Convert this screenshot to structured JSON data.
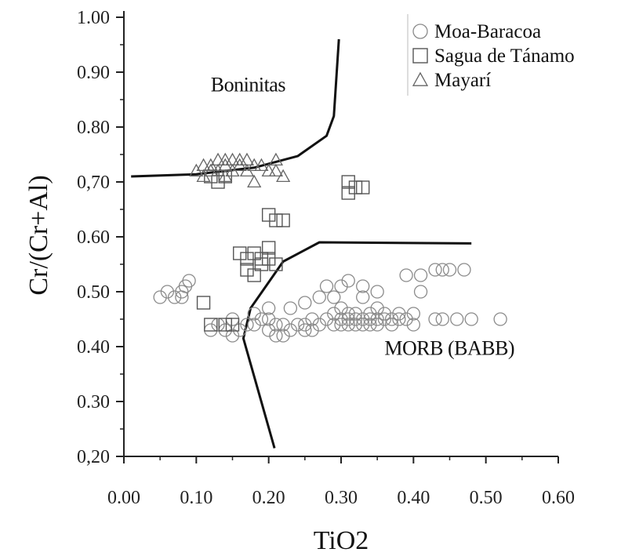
{
  "chart_data": {
    "type": "scatter",
    "xlabel": "TiO2",
    "ylabel": "Cr/(Cr+Al)",
    "xlim": [
      0.0,
      0.6
    ],
    "ylim": [
      0.2,
      1.0
    ],
    "x_ticks": [
      "0.00",
      "0.10",
      "0.20",
      "0.30",
      "0.40",
      "0.50",
      "0.60"
    ],
    "y_ticks": [
      "0,20",
      "0.30",
      "0.40",
      "0.50",
      "0.60",
      "0,70",
      "0.80",
      "0.90",
      "1.00"
    ],
    "legend_position": "top-right",
    "series": [
      {
        "name": "Moa-Baracoa",
        "marker": "circle",
        "points": [
          [
            0.05,
            0.49
          ],
          [
            0.06,
            0.5
          ],
          [
            0.07,
            0.49
          ],
          [
            0.08,
            0.5
          ],
          [
            0.085,
            0.51
          ],
          [
            0.09,
            0.52
          ],
          [
            0.08,
            0.49
          ],
          [
            0.12,
            0.43
          ],
          [
            0.13,
            0.44
          ],
          [
            0.14,
            0.43
          ],
          [
            0.15,
            0.45
          ],
          [
            0.15,
            0.42
          ],
          [
            0.16,
            0.43
          ],
          [
            0.17,
            0.44
          ],
          [
            0.18,
            0.44
          ],
          [
            0.18,
            0.46
          ],
          [
            0.19,
            0.45
          ],
          [
            0.2,
            0.43
          ],
          [
            0.2,
            0.45
          ],
          [
            0.2,
            0.47
          ],
          [
            0.21,
            0.44
          ],
          [
            0.21,
            0.42
          ],
          [
            0.22,
            0.44
          ],
          [
            0.22,
            0.42
          ],
          [
            0.23,
            0.43
          ],
          [
            0.24,
            0.44
          ],
          [
            0.25,
            0.44
          ],
          [
            0.25,
            0.43
          ],
          [
            0.26,
            0.45
          ],
          [
            0.26,
            0.43
          ],
          [
            0.27,
            0.44
          ],
          [
            0.27,
            0.49
          ],
          [
            0.28,
            0.51
          ],
          [
            0.28,
            0.45
          ],
          [
            0.29,
            0.46
          ],
          [
            0.29,
            0.44
          ],
          [
            0.3,
            0.44
          ],
          [
            0.3,
            0.45
          ],
          [
            0.3,
            0.47
          ],
          [
            0.31,
            0.44
          ],
          [
            0.31,
            0.46
          ],
          [
            0.31,
            0.45
          ],
          [
            0.32,
            0.44
          ],
          [
            0.32,
            0.45
          ],
          [
            0.32,
            0.46
          ],
          [
            0.33,
            0.44
          ],
          [
            0.33,
            0.45
          ],
          [
            0.33,
            0.51
          ],
          [
            0.34,
            0.44
          ],
          [
            0.34,
            0.45
          ],
          [
            0.34,
            0.46
          ],
          [
            0.35,
            0.45
          ],
          [
            0.35,
            0.44
          ],
          [
            0.35,
            0.5
          ],
          [
            0.36,
            0.45
          ],
          [
            0.36,
            0.46
          ],
          [
            0.37,
            0.45
          ],
          [
            0.37,
            0.44
          ],
          [
            0.38,
            0.45
          ],
          [
            0.38,
            0.46
          ],
          [
            0.39,
            0.45
          ],
          [
            0.4,
            0.44
          ],
          [
            0.4,
            0.46
          ],
          [
            0.39,
            0.53
          ],
          [
            0.41,
            0.53
          ],
          [
            0.43,
            0.54
          ],
          [
            0.44,
            0.54
          ],
          [
            0.45,
            0.54
          ],
          [
            0.47,
            0.54
          ],
          [
            0.41,
            0.5
          ],
          [
            0.43,
            0.45
          ],
          [
            0.44,
            0.45
          ],
          [
            0.46,
            0.45
          ],
          [
            0.48,
            0.45
          ],
          [
            0.52,
            0.45
          ],
          [
            0.3,
            0.51
          ],
          [
            0.29,
            0.49
          ],
          [
            0.31,
            0.52
          ],
          [
            0.33,
            0.49
          ],
          [
            0.35,
            0.47
          ],
          [
            0.25,
            0.48
          ],
          [
            0.23,
            0.47
          ]
        ]
      },
      {
        "name": "Sagua de Tánamo",
        "marker": "square",
        "points": [
          [
            0.11,
            0.48
          ],
          [
            0.12,
            0.44
          ],
          [
            0.14,
            0.44
          ],
          [
            0.15,
            0.44
          ],
          [
            0.16,
            0.57
          ],
          [
            0.17,
            0.56
          ],
          [
            0.17,
            0.54
          ],
          [
            0.18,
            0.57
          ],
          [
            0.18,
            0.53
          ],
          [
            0.19,
            0.55
          ],
          [
            0.19,
            0.56
          ],
          [
            0.2,
            0.56
          ],
          [
            0.2,
            0.58
          ],
          [
            0.21,
            0.55
          ],
          [
            0.2,
            0.64
          ],
          [
            0.21,
            0.63
          ],
          [
            0.22,
            0.63
          ],
          [
            0.31,
            0.7
          ],
          [
            0.31,
            0.68
          ],
          [
            0.32,
            0.69
          ],
          [
            0.33,
            0.69
          ],
          [
            0.12,
            0.71
          ],
          [
            0.13,
            0.7
          ],
          [
            0.14,
            0.71
          ]
        ]
      },
      {
        "name": "Mayarí",
        "marker": "triangle",
        "points": [
          [
            0.1,
            0.72
          ],
          [
            0.11,
            0.73
          ],
          [
            0.11,
            0.71
          ],
          [
            0.12,
            0.73
          ],
          [
            0.12,
            0.72
          ],
          [
            0.13,
            0.74
          ],
          [
            0.13,
            0.72
          ],
          [
            0.14,
            0.74
          ],
          [
            0.14,
            0.73
          ],
          [
            0.14,
            0.71
          ],
          [
            0.15,
            0.74
          ],
          [
            0.15,
            0.72
          ],
          [
            0.16,
            0.74
          ],
          [
            0.16,
            0.73
          ],
          [
            0.17,
            0.74
          ],
          [
            0.17,
            0.72
          ],
          [
            0.18,
            0.73
          ],
          [
            0.19,
            0.73
          ],
          [
            0.2,
            0.72
          ],
          [
            0.21,
            0.74
          ],
          [
            0.21,
            0.72
          ],
          [
            0.22,
            0.71
          ],
          [
            0.18,
            0.7
          ]
        ]
      }
    ],
    "field_boundaries": [
      {
        "name": "boninite-boundary",
        "points": [
          [
            0.01,
            0.71
          ],
          [
            0.1,
            0.714
          ],
          [
            0.18,
            0.726
          ],
          [
            0.24,
            0.747
          ],
          [
            0.28,
            0.784
          ],
          [
            0.29,
            0.82
          ],
          [
            0.297,
            0.96
          ]
        ]
      },
      {
        "name": "morb-boundary",
        "points": [
          [
            0.208,
            0.215
          ],
          [
            0.165,
            0.415
          ],
          [
            0.175,
            0.47
          ],
          [
            0.22,
            0.555
          ],
          [
            0.27,
            0.59
          ],
          [
            0.48,
            0.588
          ]
        ]
      }
    ],
    "field_labels": [
      {
        "name": "boninitas-label",
        "text": "Boninitas",
        "x": 0.12,
        "y": 0.865
      },
      {
        "name": "morb-label",
        "text": "MORB (BABB)",
        "x": 0.36,
        "y": 0.385
      }
    ]
  }
}
